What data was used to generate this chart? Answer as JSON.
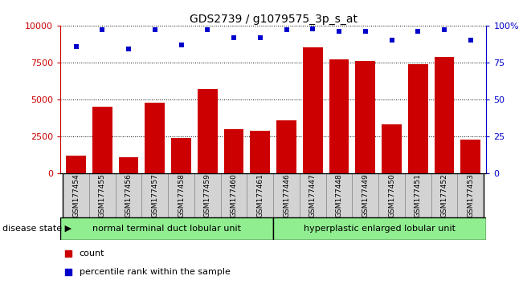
{
  "title": "GDS2739 / g1079575_3p_s_at",
  "samples": [
    "GSM177454",
    "GSM177455",
    "GSM177456",
    "GSM177457",
    "GSM177458",
    "GSM177459",
    "GSM177460",
    "GSM177461",
    "GSM177446",
    "GSM177447",
    "GSM177448",
    "GSM177449",
    "GSM177450",
    "GSM177451",
    "GSM177452",
    "GSM177453"
  ],
  "counts": [
    1200,
    4500,
    1100,
    4800,
    2400,
    5700,
    3000,
    2900,
    3600,
    8500,
    7700,
    7600,
    3300,
    7400,
    7900,
    2300
  ],
  "percentiles": [
    86,
    97,
    84,
    97,
    87,
    97,
    92,
    92,
    97,
    98,
    96,
    96,
    90,
    96,
    97,
    90
  ],
  "group1_label": "normal terminal duct lobular unit",
  "group2_label": "hyperplastic enlarged lobular unit",
  "group1_count": 8,
  "group2_count": 8,
  "bar_color": "#cc0000",
  "dot_color": "#0000cc",
  "group_color": "#90ee90",
  "xtick_bg": "#d3d3d3",
  "yticks_left": [
    0,
    2500,
    5000,
    7500,
    10000
  ],
  "yticks_right": [
    0,
    25,
    50,
    75,
    100
  ],
  "ylim_left": [
    0,
    10000
  ],
  "ylim_right": [
    0,
    100
  ],
  "legend_count": "count",
  "legend_percentile": "percentile rank within the sample",
  "disease_state_label": "disease state",
  "background_color": "#ffffff"
}
